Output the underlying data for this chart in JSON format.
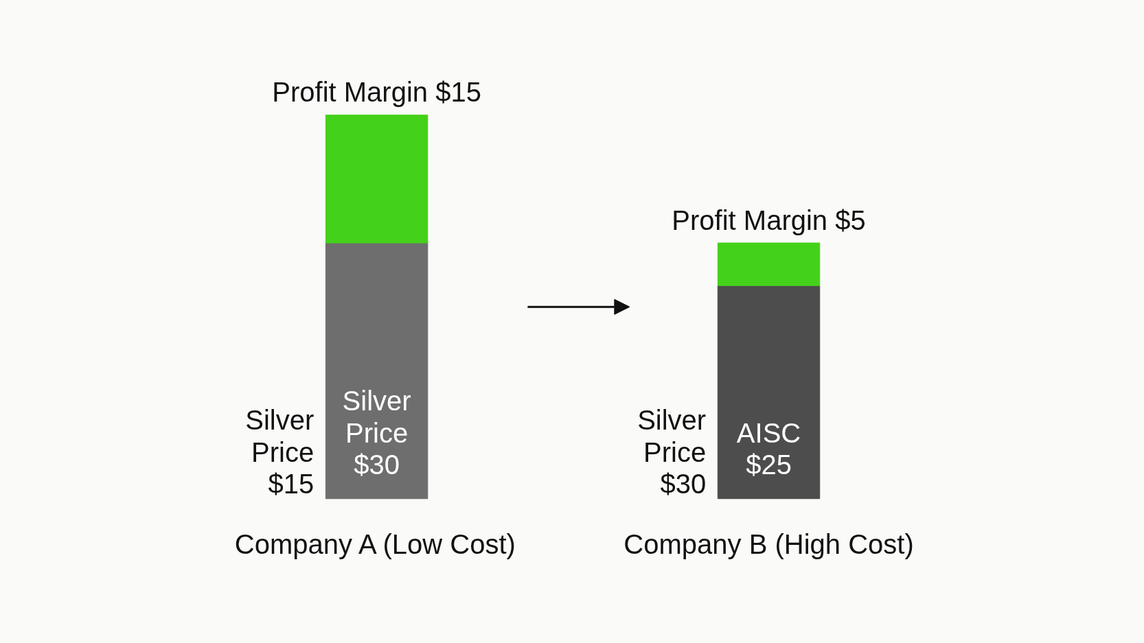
{
  "chart_data": {
    "type": "bar",
    "stacked": true,
    "categories": [
      "Company A (Low Cost)",
      "Company B (High Cost)"
    ],
    "series": [
      {
        "colors": [
          "#6e6e6e",
          "#4d4d4d"
        ],
        "values": [
          30,
          25
        ],
        "value_labels": [
          "Silver\nPrice\n$30",
          "AISC\n$25"
        ]
      },
      {
        "color": "#44d11a",
        "values": [
          15,
          5
        ],
        "value_labels": [
          "Profit Margin $15",
          "Profit Margin $5"
        ]
      }
    ],
    "annotations": [
      {
        "text": "Silver\nPrice\n$15",
        "x": "Company A (Low Cost)",
        "y": 0
      },
      {
        "text": "Silver\nPrice\n$30",
        "x": "Company B (High Cost)",
        "y": 0
      }
    ]
  }
}
